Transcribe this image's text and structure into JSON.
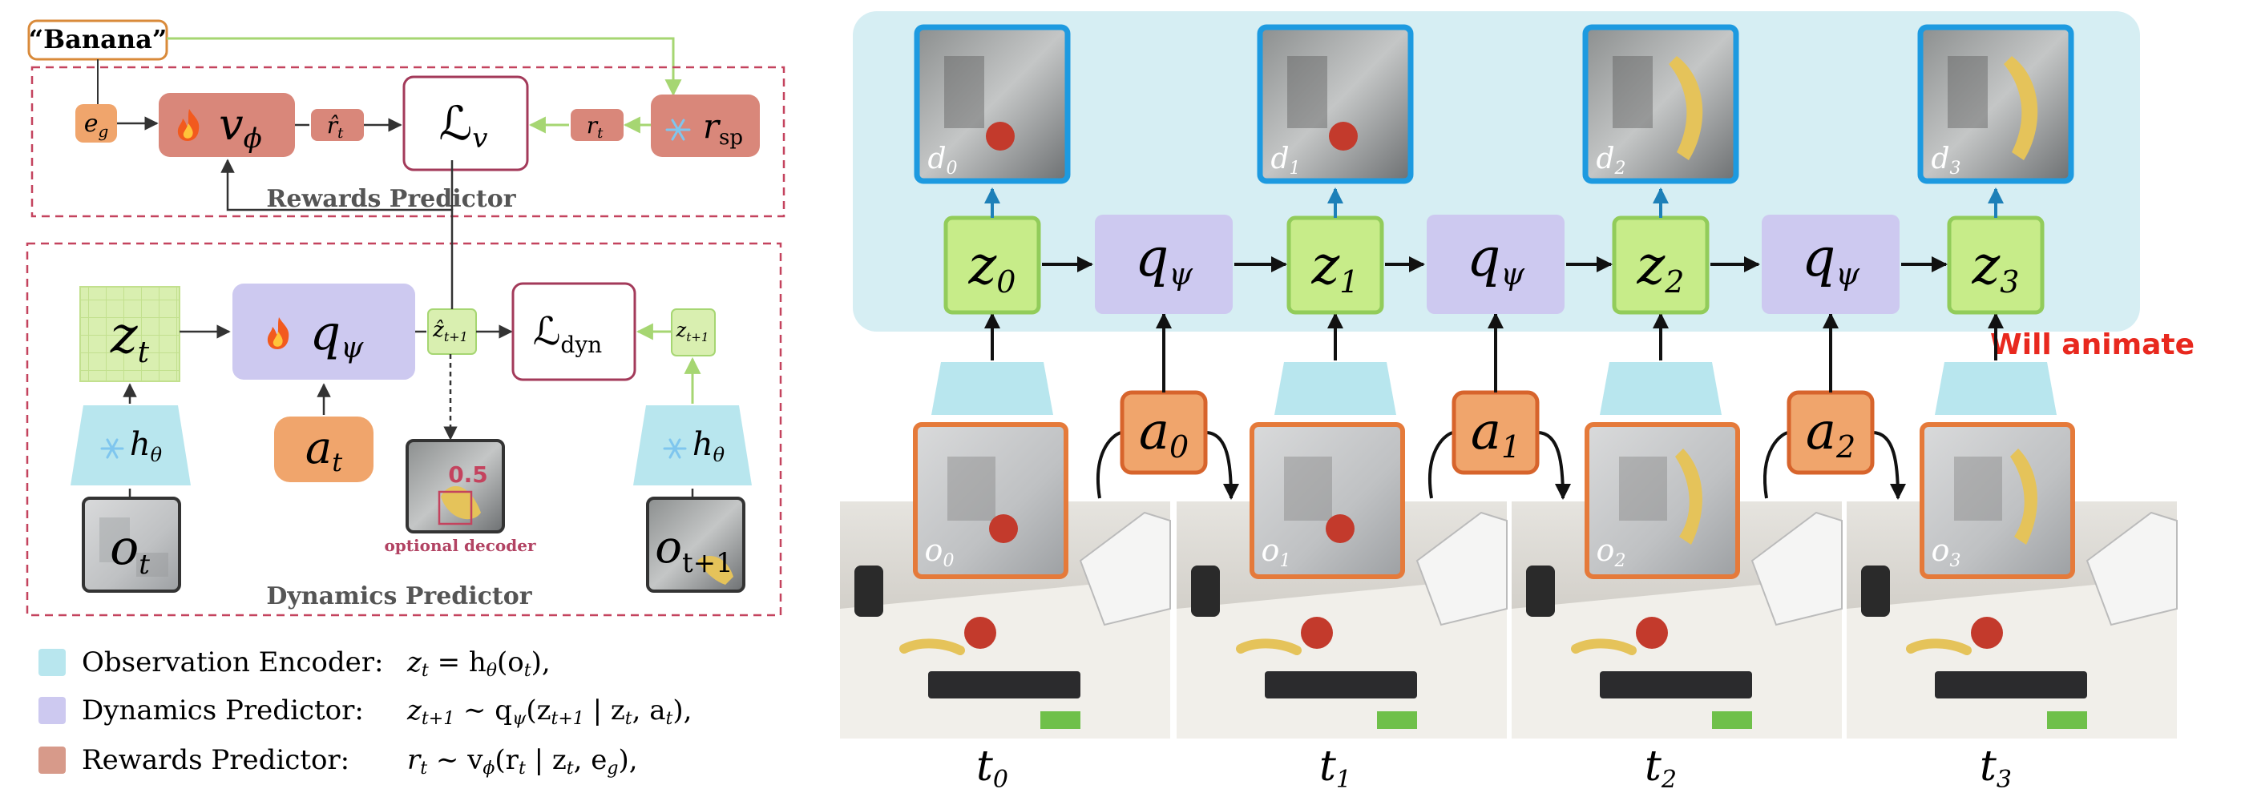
{
  "left": {
    "goal_label": "“Banana”",
    "rewards_box": {
      "title": "Rewards Predictor",
      "goal_embed": {
        "base": "e",
        "sub": "g"
      },
      "value_net": {
        "base": "v",
        "sub": "ϕ",
        "icon": "fire-icon"
      },
      "r_hat": {
        "base": "r̂",
        "sub": "t"
      },
      "loss_v": {
        "base": "ℒ",
        "sub": "v"
      },
      "r_t": {
        "base": "r",
        "sub": "t"
      },
      "r_sp": {
        "base": "r",
        "sub": "sp",
        "icon": "snowflake-icon"
      }
    },
    "dynamics_box": {
      "title": "Dynamics Predictor",
      "z_t": {
        "base": "z",
        "sub": "t"
      },
      "q_psi": {
        "base": "q",
        "sub": "ψ",
        "icon": "fire-icon"
      },
      "z_hat_next": {
        "base": "ẑ",
        "sub": "t+1"
      },
      "loss_dyn": {
        "base": "ℒ",
        "sub": "dyn"
      },
      "z_next": {
        "base": "z",
        "sub": "t+1"
      },
      "encoder": {
        "base": "h",
        "sub": "θ",
        "icon": "snowflake-icon"
      },
      "action": {
        "base": "a",
        "sub": "t"
      },
      "obs": {
        "base": "o",
        "sub": "t"
      },
      "obs_next": {
        "base": "o",
        "sub": "t+1"
      },
      "decoder_score": "0.5",
      "decoder_label": "optional decoder"
    },
    "legend": [
      {
        "label": "Observation Encoder:",
        "eq": "z_t = h_θ(o_t),",
        "color": "#b8e6ee"
      },
      {
        "label": "Dynamics Predictor:",
        "eq": "z_{t+1} ∼ q_ψ(z_{t+1} | z_t, a_t),",
        "color": "#cdc9f0"
      },
      {
        "label": "Rewards Predictor:",
        "eq": "r_t ∼ v_ϕ(r_t | z_t, e_g),",
        "color": "#d79a8a"
      }
    ]
  },
  "right": {
    "animate_note": "Will animate",
    "latents": [
      {
        "base": "z",
        "sub": "0"
      },
      {
        "base": "z",
        "sub": "1"
      },
      {
        "base": "z",
        "sub": "2"
      },
      {
        "base": "z",
        "sub": "3"
      }
    ],
    "dynamics": [
      {
        "base": "q",
        "sub": "ψ"
      },
      {
        "base": "q",
        "sub": "ψ"
      },
      {
        "base": "q",
        "sub": "ψ"
      }
    ],
    "actions": [
      {
        "base": "a",
        "sub": "0"
      },
      {
        "base": "a",
        "sub": "1"
      },
      {
        "base": "a",
        "sub": "2"
      }
    ],
    "decoded": [
      {
        "base": "d",
        "sub": "0"
      },
      {
        "base": "d",
        "sub": "1"
      },
      {
        "base": "d",
        "sub": "2"
      },
      {
        "base": "d",
        "sub": "3"
      }
    ],
    "observations": [
      {
        "base": "o",
        "sub": "0"
      },
      {
        "base": "o",
        "sub": "1"
      },
      {
        "base": "o",
        "sub": "2"
      },
      {
        "base": "o",
        "sub": "3"
      }
    ],
    "timesteps": [
      {
        "base": "t",
        "sub": "0"
      },
      {
        "base": "t",
        "sub": "1"
      },
      {
        "base": "t",
        "sub": "2"
      },
      {
        "base": "t",
        "sub": "3"
      }
    ]
  }
}
